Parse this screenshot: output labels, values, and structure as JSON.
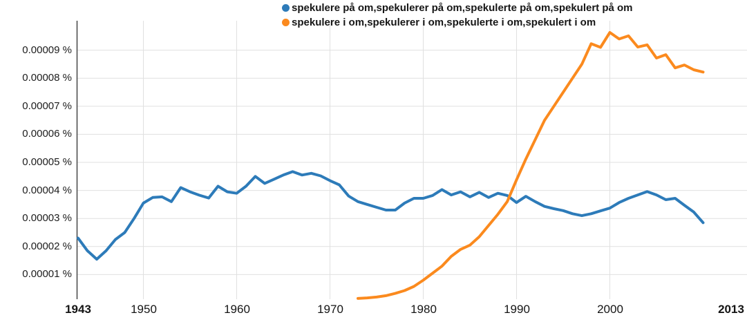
{
  "chart_data": {
    "type": "line",
    "title": "",
    "xlabel": "",
    "ylabel": "",
    "grid": true,
    "legend_position": "top",
    "x_axis": {
      "range": [
        1943,
        2013
      ],
      "ticks": [
        {
          "label": "1943",
          "year": 1943,
          "bold": true,
          "gridline": false
        },
        {
          "label": "1950",
          "year": 1950,
          "bold": false,
          "gridline": true
        },
        {
          "label": "1960",
          "year": 1960,
          "bold": false,
          "gridline": true
        },
        {
          "label": "1970",
          "year": 1970,
          "bold": false,
          "gridline": true
        },
        {
          "label": "1980",
          "year": 1980,
          "bold": false,
          "gridline": true
        },
        {
          "label": "1990",
          "year": 1990,
          "bold": false,
          "gridline": true
        },
        {
          "label": "2000",
          "year": 2000,
          "bold": false,
          "gridline": true
        },
        {
          "label": "2013",
          "year": 2013,
          "bold": true,
          "gridline": false
        }
      ]
    },
    "y_axis": {
      "unit": "%",
      "range": [
        0,
        9.8e-05
      ],
      "tick_labels": [
        "0.00009 %",
        "0.00008 %",
        "0.00007 %",
        "0.00006 %",
        "0.00005 %",
        "0.00004 %",
        "0.00003 %",
        "0.00002 %",
        "0.00001 %"
      ],
      "tick_values": [
        9e-05,
        8e-05,
        7e-05,
        6e-05,
        5e-05,
        4e-05,
        3e-05,
        2e-05,
        1e-05
      ]
    },
    "series": [
      {
        "name": "spekulere på om,spekulerer på om,spekulerte på om,spekulert på om",
        "color": "#2d7bb9",
        "start_year": 1943,
        "end_year": 2010,
        "values": [
          2.3e-05,
          1.85e-05,
          1.55e-05,
          1.85e-05,
          2.25e-05,
          2.5e-05,
          3e-05,
          3.55e-05,
          3.75e-05,
          3.77e-05,
          3.6e-05,
          4.1e-05,
          3.95e-05,
          3.83e-05,
          3.73e-05,
          4.15e-05,
          3.95e-05,
          3.9e-05,
          4.15e-05,
          4.5e-05,
          4.25e-05,
          4.4e-05,
          4.55e-05,
          4.67e-05,
          4.55e-05,
          4.61e-05,
          4.52e-05,
          4.35e-05,
          4.2e-05,
          3.8e-05,
          3.6e-05,
          3.5e-05,
          3.4e-05,
          3.3e-05,
          3.3e-05,
          3.55e-05,
          3.72e-05,
          3.72e-05,
          3.82e-05,
          4.03e-05,
          3.84e-05,
          3.95e-05,
          3.77e-05,
          3.93e-05,
          3.75e-05,
          3.9e-05,
          3.82e-05,
          3.57e-05,
          3.79e-05,
          3.6e-05,
          3.43e-05,
          3.35e-05,
          3.28e-05,
          3.17e-05,
          3.1e-05,
          3.17e-05,
          3.27e-05,
          3.37e-05,
          3.57e-05,
          3.72e-05,
          3.84e-05,
          3.96e-05,
          3.84e-05,
          3.67e-05,
          3.72e-05,
          3.47e-05,
          3.23e-05,
          2.85e-05
        ]
      },
      {
        "name": "spekulere i om,spekulerer i om,spekulerte i om,spekulert i om",
        "color": "#fb8a1e",
        "start_year": 1973,
        "end_year": 2010,
        "values": [
          1.5e-06,
          1.7e-06,
          2e-06,
          2.5e-06,
          3.3e-06,
          4.3e-06,
          5.8e-06,
          8e-06,
          1.05e-05,
          1.3e-05,
          1.65e-05,
          1.9e-05,
          2.05e-05,
          2.35e-05,
          2.75e-05,
          3.15e-05,
          3.6e-05,
          4.38e-05,
          5.12e-05,
          5.81e-05,
          6.5e-05,
          7e-05,
          7.5e-05,
          8e-05,
          8.5e-05,
          9.23e-05,
          9.1e-05,
          9.63e-05,
          9.4e-05,
          9.51e-05,
          9.11e-05,
          9.19e-05,
          8.72e-05,
          8.84e-05,
          8.37e-05,
          8.47e-05,
          8.3e-05,
          8.22e-05
        ]
      }
    ]
  },
  "colors": {
    "background": "#ffffff",
    "grid": "#e0e0e0",
    "axis": "#444444",
    "text": "#1c1c1c"
  }
}
